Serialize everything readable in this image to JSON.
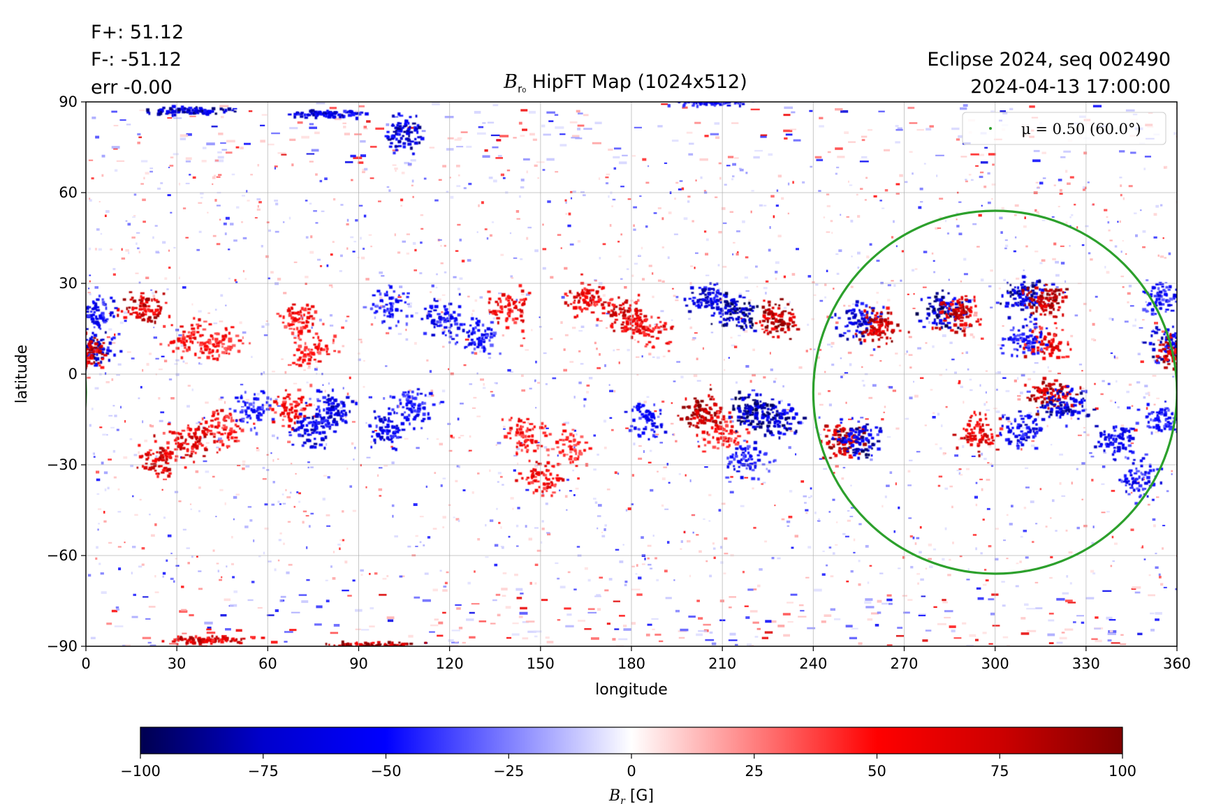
{
  "header": {
    "stat_fplus": "F+: 51.12",
    "stat_fminus": "F-: -51.12",
    "stat_err": "err -0.00",
    "title_symbol": "B",
    "title_sub": "r₀",
    "title_text": " HipFT Map (1024x512)",
    "info_line1": "Eclipse 2024, seq 002490",
    "info_line2": "2024-04-13 17:00:00"
  },
  "legend": {
    "label": "μ = 0.50 (60.0°)",
    "color": "#2ca02c"
  },
  "colorbar": {
    "label_symbol": "B",
    "label_sub": "r",
    "label_unit": " [G]",
    "colors": [
      "#000050",
      "#0000cd",
      "#0000ff",
      "#7f7fff",
      "#ffffff",
      "#ff7f7f",
      "#ff0000",
      "#cd0000",
      "#800000"
    ]
  },
  "chart_data": {
    "type": "heatmap",
    "title": "B_r0 HipFT Map (1024x512)",
    "xlabel": "longitude",
    "ylabel": "latitude",
    "xlim": [
      0,
      360
    ],
    "ylim": [
      -90,
      90
    ],
    "xticks": [
      0,
      30,
      60,
      90,
      120,
      150,
      180,
      210,
      240,
      270,
      300,
      330,
      360
    ],
    "yticks": [
      -90,
      -60,
      -30,
      0,
      30,
      60,
      90
    ],
    "ytick_labels": [
      "−90",
      "−60",
      "−30",
      "0",
      "30",
      "60",
      "90"
    ],
    "grid": true,
    "colorbar_range": [
      -100,
      100
    ],
    "colorbar_ticks": [
      -100,
      -75,
      -50,
      -25,
      0,
      25,
      50,
      75,
      100
    ],
    "colorbar_tick_labels": [
      "−100",
      "−75",
      "−50",
      "−25",
      "0",
      "25",
      "50",
      "75",
      "100"
    ],
    "colormap": "seismic",
    "legend_placement": "top-right",
    "mu_contour": {
      "label": "μ = 0.50 (60.0°)",
      "center_lon": 300,
      "center_lat": -6,
      "radius_lon": 60,
      "radius_lat": 60,
      "wrap_segment_lon": [
        360,
        363
      ],
      "wrap_segment_lat": [
        -27,
        5
      ]
    },
    "active_regions": [
      {
        "lon": 20,
        "lat": 22,
        "sign": "+",
        "strength": 75
      },
      {
        "lon": 35,
        "lat": 12,
        "sign": "+",
        "strength": 55
      },
      {
        "lon": 3,
        "lat": 20,
        "sign": "-",
        "strength": 60
      },
      {
        "lon": 2,
        "lat": 9,
        "sign": "-",
        "strength": 70
      },
      {
        "lon": 0,
        "lat": 7,
        "sign": "+",
        "strength": 80
      },
      {
        "lon": 45,
        "lat": 10,
        "sign": "+",
        "strength": 50
      },
      {
        "lon": 70,
        "lat": 18,
        "sign": "+",
        "strength": 55
      },
      {
        "lon": 75,
        "lat": 8,
        "sign": "+",
        "strength": 50
      },
      {
        "lon": 100,
        "lat": 22,
        "sign": "-",
        "strength": 50
      },
      {
        "lon": 118,
        "lat": 18,
        "sign": "-",
        "strength": 60
      },
      {
        "lon": 130,
        "lat": 12,
        "sign": "-",
        "strength": 55
      },
      {
        "lon": 140,
        "lat": 22,
        "sign": "+",
        "strength": 60
      },
      {
        "lon": 165,
        "lat": 25,
        "sign": "+",
        "strength": 65
      },
      {
        "lon": 178,
        "lat": 20,
        "sign": "+",
        "strength": 70
      },
      {
        "lon": 185,
        "lat": 15,
        "sign": "+",
        "strength": 60
      },
      {
        "lon": 205,
        "lat": 25,
        "sign": "-",
        "strength": 70
      },
      {
        "lon": 215,
        "lat": 20,
        "sign": "-",
        "strength": 85
      },
      {
        "lon": 228,
        "lat": 18,
        "sign": "+",
        "strength": 85
      },
      {
        "lon": 255,
        "lat": 18,
        "sign": "-",
        "strength": 70
      },
      {
        "lon": 262,
        "lat": 16,
        "sign": "+",
        "strength": 80
      },
      {
        "lon": 283,
        "lat": 21,
        "sign": "-",
        "strength": 85
      },
      {
        "lon": 288,
        "lat": 20,
        "sign": "+",
        "strength": 75
      },
      {
        "lon": 310,
        "lat": 26,
        "sign": "-",
        "strength": 80
      },
      {
        "lon": 317,
        "lat": 24,
        "sign": "+",
        "strength": 85
      },
      {
        "lon": 318,
        "lat": 10,
        "sign": "+",
        "strength": 65
      },
      {
        "lon": 310,
        "lat": 12,
        "sign": "-",
        "strength": 55
      },
      {
        "lon": 355,
        "lat": 25,
        "sign": "-",
        "strength": 55
      },
      {
        "lon": 358,
        "lat": 10,
        "sign": "-",
        "strength": 75
      },
      {
        "lon": 360,
        "lat": 7,
        "sign": "+",
        "strength": 80
      },
      {
        "lon": 35,
        "lat": -22,
        "sign": "+",
        "strength": 70
      },
      {
        "lon": 25,
        "lat": -28,
        "sign": "+",
        "strength": 70
      },
      {
        "lon": 45,
        "lat": -18,
        "sign": "+",
        "strength": 60
      },
      {
        "lon": 55,
        "lat": -12,
        "sign": "-",
        "strength": 50
      },
      {
        "lon": 68,
        "lat": -12,
        "sign": "+",
        "strength": 55
      },
      {
        "lon": 75,
        "lat": -18,
        "sign": "-",
        "strength": 70
      },
      {
        "lon": 82,
        "lat": -12,
        "sign": "-",
        "strength": 70
      },
      {
        "lon": 100,
        "lat": -18,
        "sign": "-",
        "strength": 65
      },
      {
        "lon": 108,
        "lat": -10,
        "sign": "-",
        "strength": 55
      },
      {
        "lon": 145,
        "lat": -20,
        "sign": "+",
        "strength": 55
      },
      {
        "lon": 150,
        "lat": -35,
        "sign": "+",
        "strength": 60
      },
      {
        "lon": 160,
        "lat": -25,
        "sign": "+",
        "strength": 45
      },
      {
        "lon": 185,
        "lat": -15,
        "sign": "-",
        "strength": 55
      },
      {
        "lon": 204,
        "lat": -13,
        "sign": "+",
        "strength": 90
      },
      {
        "lon": 210,
        "lat": -20,
        "sign": "+",
        "strength": 55
      },
      {
        "lon": 220,
        "lat": -12,
        "sign": "-",
        "strength": 90
      },
      {
        "lon": 228,
        "lat": -15,
        "sign": "-",
        "strength": 80
      },
      {
        "lon": 218,
        "lat": -28,
        "sign": "-",
        "strength": 55
      },
      {
        "lon": 250,
        "lat": -22,
        "sign": "+",
        "strength": 85
      },
      {
        "lon": 255,
        "lat": -22,
        "sign": "-",
        "strength": 80
      },
      {
        "lon": 295,
        "lat": -20,
        "sign": "+",
        "strength": 70
      },
      {
        "lon": 310,
        "lat": -18,
        "sign": "-",
        "strength": 65
      },
      {
        "lon": 318,
        "lat": -7,
        "sign": "+",
        "strength": 80
      },
      {
        "lon": 323,
        "lat": -10,
        "sign": "-",
        "strength": 75
      },
      {
        "lon": 340,
        "lat": -22,
        "sign": "-",
        "strength": 65
      },
      {
        "lon": 348,
        "lat": -35,
        "sign": "-",
        "strength": 55
      },
      {
        "lon": 355,
        "lat": -15,
        "sign": "-",
        "strength": 55
      },
      {
        "lon": 95,
        "lat": -90,
        "sign": "+",
        "strength": 95
      },
      {
        "lon": 40,
        "lat": -88,
        "sign": "+",
        "strength": 70
      },
      {
        "lon": 35,
        "lat": 87,
        "sign": "-",
        "strength": 80
      },
      {
        "lon": 80,
        "lat": 86,
        "sign": "-",
        "strength": 70
      },
      {
        "lon": 105,
        "lat": 80,
        "sign": "-",
        "strength": 75
      },
      {
        "lon": 205,
        "lat": 90,
        "sign": "-",
        "strength": 60
      }
    ]
  }
}
